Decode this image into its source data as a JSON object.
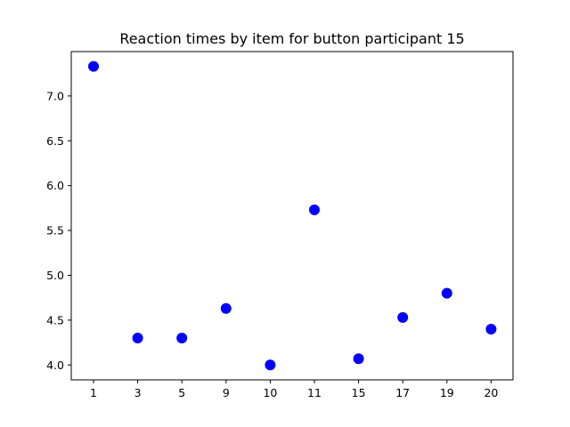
{
  "chart_data": {
    "type": "scatter",
    "title": "Reaction times by item for button participant 15",
    "xlabel": "",
    "ylabel": "",
    "categories": [
      "1",
      "3",
      "5",
      "9",
      "10",
      "11",
      "15",
      "17",
      "19",
      "20"
    ],
    "values": [
      7.33,
      4.3,
      4.3,
      4.63,
      4.0,
      5.73,
      4.07,
      4.53,
      4.8,
      4.4
    ],
    "y_ticks": [
      "4.0",
      "4.5",
      "5.0",
      "5.5",
      "6.0",
      "6.5",
      "7.0"
    ],
    "ylim": [
      3.834,
      7.495
    ],
    "grid": false,
    "marker_color": "#0000ff"
  }
}
